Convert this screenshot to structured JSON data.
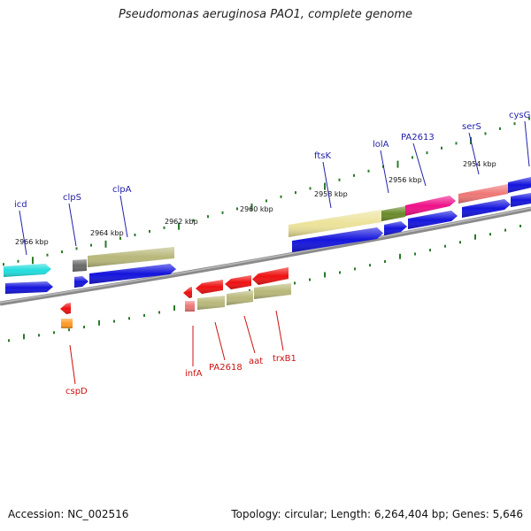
{
  "title": "Pseudomonas aeruginosa PAO1, complete genome",
  "footer": {
    "accession": "Accession: NC_002516",
    "summary": "Topology: circular; Length: 6,264,404 bp; Genes: 5,646"
  },
  "colors": {
    "backbone": "#8a8a8a",
    "tick": "#2a7a2a",
    "blue": "#1414dd",
    "cyan": "#22dddd",
    "olive": "#b8b87a",
    "darkgray": "#6a6a6a",
    "red": "#ee1111",
    "salmon": "#ee7777",
    "orange": "#ff9922",
    "khaki": "#ece29a",
    "green": "#6a8a2a",
    "magenta": "#ee1188",
    "label_top": "#2222aa",
    "label_bottom": "#cc1111"
  },
  "kbp_labels": [
    "2966 kbp",
    "2964 kbp",
    "2962 kbp",
    "2960 kbp",
    "2958 kbp",
    "2956 kbp",
    "2954 kbp"
  ],
  "genes_top": [
    "icd",
    "clpS",
    "clpA",
    "ftsK",
    "lolA",
    "PA2613",
    "serS",
    "cysG"
  ],
  "genes_bottom": [
    "cspD",
    "infA",
    "PA2618",
    "aat",
    "trxB1"
  ]
}
